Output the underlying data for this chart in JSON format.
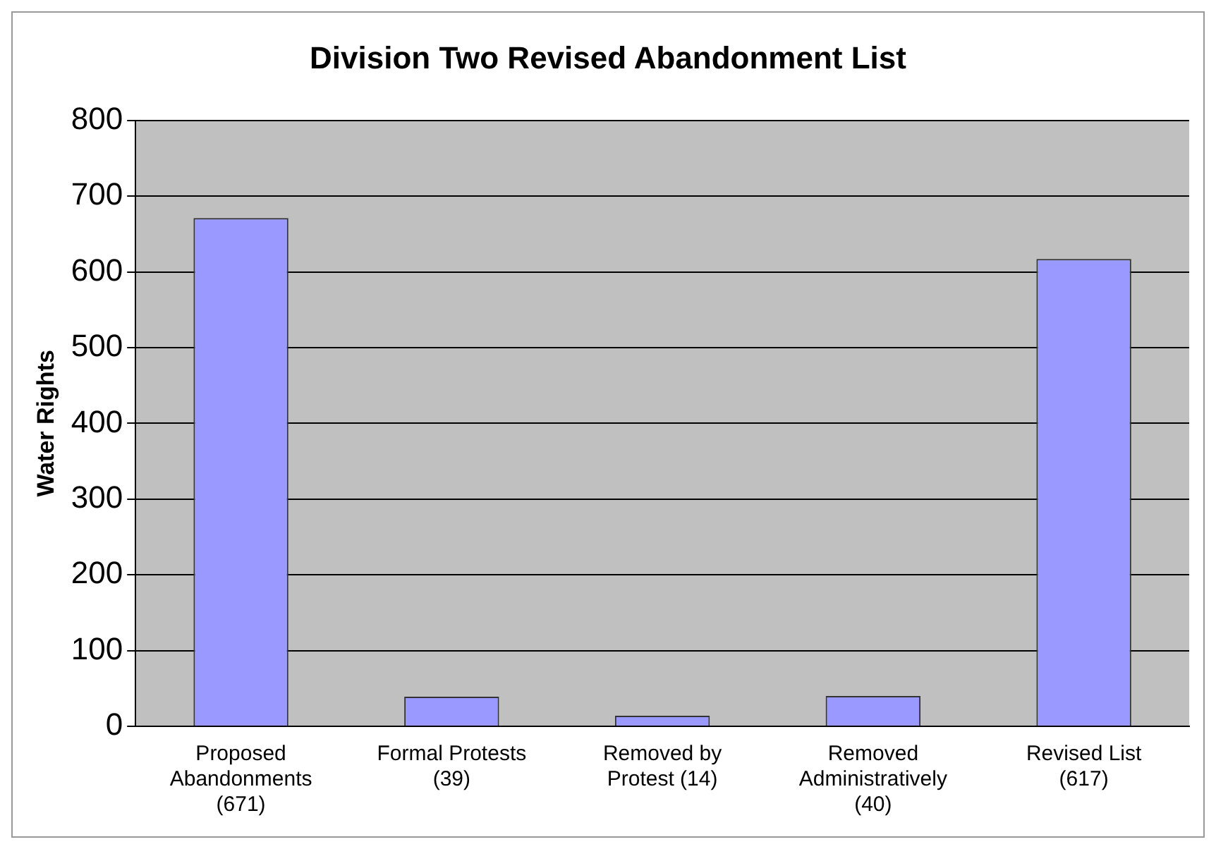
{
  "chart_data": {
    "type": "bar",
    "title": "Division Two Revised Abandonment List",
    "ylabel": "Water Rights",
    "categories": [
      "Proposed\nAbandonments\n(671)",
      "Formal Protests\n(39)",
      "Removed by\nProtest (14)",
      "Removed\nAdministratively\n(40)",
      "Revised List\n(617)"
    ],
    "values": [
      671,
      39,
      14,
      40,
      617
    ],
    "color": "#9999ff",
    "ylim": [
      0,
      800
    ],
    "yticks": [
      0,
      100,
      200,
      300,
      400,
      500,
      600,
      700,
      800
    ],
    "grid": "y",
    "legend": false
  }
}
